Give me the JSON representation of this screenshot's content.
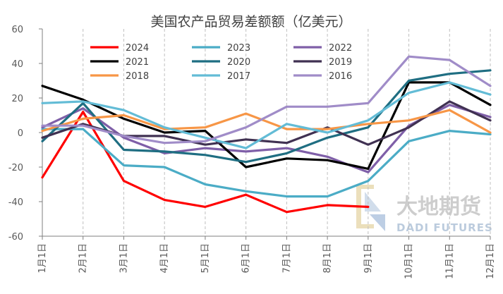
{
  "chart_data": {
    "type": "line",
    "title": "美国农产品贸易差额额（亿美元）",
    "xlabel": "",
    "ylabel": "",
    "ylim": [
      -60,
      60
    ],
    "yticks": [
      60,
      40,
      20,
      0,
      -20,
      -40,
      -60
    ],
    "categories": [
      "1月1日",
      "2月1日",
      "3月1日",
      "4月1日",
      "5月1日",
      "6月1日",
      "7月1日",
      "8月1日",
      "9月1日",
      "10月1日",
      "11月1日",
      "12月1日"
    ],
    "grid": "vertical-dashed",
    "series": [
      {
        "name": "2024",
        "color": "#ff0000",
        "values": [
          -26,
          12,
          -28,
          -39,
          -43,
          -36,
          -46,
          -42,
          -43,
          null,
          null,
          null
        ]
      },
      {
        "name": "2023",
        "color": "#4bacc6",
        "values": [
          2,
          2,
          -19,
          -20,
          -30,
          -34,
          -37,
          -37,
          -28,
          -5,
          1,
          -1
        ]
      },
      {
        "name": "2022",
        "color": "#7f5fa8",
        "values": [
          3,
          14,
          -3,
          -12,
          -9,
          -11,
          -9,
          -14,
          -23,
          4,
          16,
          9
        ]
      },
      {
        "name": "2021",
        "color": "#000000",
        "values": [
          27,
          19,
          8,
          0,
          1,
          -20,
          -15,
          -16,
          -21,
          29,
          29,
          16
        ]
      },
      {
        "name": "2020",
        "color": "#1f6e82",
        "values": [
          -5,
          17,
          -10,
          -11,
          -13,
          -17,
          -12,
          -3,
          3,
          30,
          34,
          36
        ]
      },
      {
        "name": "2019",
        "color": "#403152",
        "values": [
          -3,
          5,
          -2,
          -2,
          -7,
          -4,
          -6,
          3,
          -7,
          3,
          18,
          7
        ]
      },
      {
        "name": "2018",
        "color": "#f79646",
        "values": [
          1,
          8,
          10,
          2,
          3,
          11,
          2,
          2,
          5,
          7,
          13,
          0
        ]
      },
      {
        "name": "2017",
        "color": "#63bcd6",
        "values": [
          17,
          18,
          13,
          3,
          -3,
          -9,
          5,
          0,
          7,
          23,
          29,
          22
        ]
      },
      {
        "name": "2016",
        "color": "#a08cc8",
        "values": [
          4,
          4,
          -2,
          -6,
          -5,
          3,
          15,
          15,
          17,
          44,
          42,
          27
        ]
      }
    ],
    "legend_position": "top-center"
  },
  "watermark": {
    "cn": "大地期货",
    "en": "DADI FUTURES"
  },
  "colors": {
    "axis": "#7f7f7f",
    "grid": "#bfbfbf",
    "text": "#595959"
  }
}
